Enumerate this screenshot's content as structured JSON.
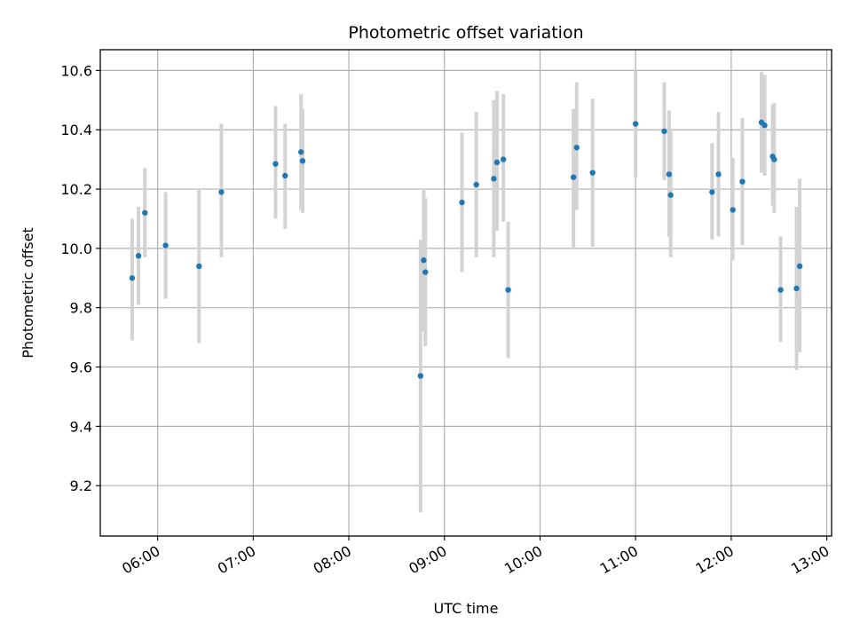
{
  "chart_data": {
    "type": "scatter",
    "title": "Photometric offset variation",
    "xlabel": "UTC time",
    "ylabel": "Photometric offset",
    "x_ticks": [
      "06:00",
      "07:00",
      "08:00",
      "09:00",
      "10:00",
      "11:00",
      "12:00",
      "13:00"
    ],
    "y_ticks": [
      "9.2",
      "9.4",
      "9.6",
      "9.8",
      "10.0",
      "10.2",
      "10.4",
      "10.6"
    ],
    "xlim": [
      "05:24",
      "13:03"
    ],
    "ylim": [
      9.03,
      10.67
    ],
    "grid": true,
    "colors": {
      "point": "#1f77b4",
      "errorbar": "#d3d3d3",
      "grid": "#b0b0b0"
    },
    "points": [
      {
        "x": "05:44",
        "y": 9.9,
        "ylo": 9.69,
        "yhi": 10.1
      },
      {
        "x": "05:48",
        "y": 9.975,
        "ylo": 9.81,
        "yhi": 10.14
      },
      {
        "x": "05:52",
        "y": 10.12,
        "ylo": 9.97,
        "yhi": 10.27
      },
      {
        "x": "06:05",
        "y": 10.01,
        "ylo": 9.83,
        "yhi": 10.19
      },
      {
        "x": "06:26",
        "y": 9.94,
        "ylo": 9.68,
        "yhi": 10.2
      },
      {
        "x": "06:40",
        "y": 10.19,
        "ylo": 9.97,
        "yhi": 10.42
      },
      {
        "x": "07:14",
        "y": 10.285,
        "ylo": 10.1,
        "yhi": 10.48
      },
      {
        "x": "07:20",
        "y": 10.245,
        "ylo": 10.065,
        "yhi": 10.42
      },
      {
        "x": "07:30",
        "y": 10.325,
        "ylo": 10.13,
        "yhi": 10.52
      },
      {
        "x": "07:31",
        "y": 10.295,
        "ylo": 10.12,
        "yhi": 10.47
      },
      {
        "x": "08:45",
        "y": 9.57,
        "ylo": 9.11,
        "yhi": 10.03
      },
      {
        "x": "08:47",
        "y": 9.96,
        "ylo": 9.72,
        "yhi": 10.2
      },
      {
        "x": "08:48",
        "y": 9.92,
        "ylo": 9.67,
        "yhi": 10.17
      },
      {
        "x": "09:11",
        "y": 10.155,
        "ylo": 9.92,
        "yhi": 10.39
      },
      {
        "x": "09:20",
        "y": 10.215,
        "ylo": 9.97,
        "yhi": 10.46
      },
      {
        "x": "09:31",
        "y": 10.235,
        "ylo": 9.97,
        "yhi": 10.5
      },
      {
        "x": "09:33",
        "y": 10.29,
        "ylo": 10.06,
        "yhi": 10.53
      },
      {
        "x": "09:37",
        "y": 10.3,
        "ylo": 10.09,
        "yhi": 10.52
      },
      {
        "x": "09:40",
        "y": 9.86,
        "ylo": 9.63,
        "yhi": 10.09
      },
      {
        "x": "10:21",
        "y": 10.24,
        "ylo": 10.0,
        "yhi": 10.47
      },
      {
        "x": "10:23",
        "y": 10.34,
        "ylo": 10.13,
        "yhi": 10.56
      },
      {
        "x": "10:33",
        "y": 10.255,
        "ylo": 10.005,
        "yhi": 10.505
      },
      {
        "x": "11:00",
        "y": 10.42,
        "ylo": 10.24,
        "yhi": 10.6
      },
      {
        "x": "11:18",
        "y": 10.395,
        "ylo": 10.23,
        "yhi": 10.56
      },
      {
        "x": "11:21",
        "y": 10.25,
        "ylo": 10.04,
        "yhi": 10.465
      },
      {
        "x": "11:22",
        "y": 10.18,
        "ylo": 9.97,
        "yhi": 10.4
      },
      {
        "x": "11:48",
        "y": 10.19,
        "ylo": 10.03,
        "yhi": 10.355
      },
      {
        "x": "11:52",
        "y": 10.25,
        "ylo": 10.04,
        "yhi": 10.46
      },
      {
        "x": "12:01",
        "y": 10.13,
        "ylo": 9.96,
        "yhi": 10.305
      },
      {
        "x": "12:07",
        "y": 10.225,
        "ylo": 10.01,
        "yhi": 10.44
      },
      {
        "x": "12:19",
        "y": 10.425,
        "ylo": 10.255,
        "yhi": 10.595
      },
      {
        "x": "12:21",
        "y": 10.415,
        "ylo": 10.245,
        "yhi": 10.585
      },
      {
        "x": "12:26",
        "y": 10.31,
        "ylo": 10.145,
        "yhi": 10.485
      },
      {
        "x": "12:27",
        "y": 10.3,
        "ylo": 10.12,
        "yhi": 10.49
      },
      {
        "x": "12:31",
        "y": 9.86,
        "ylo": 9.685,
        "yhi": 10.04
      },
      {
        "x": "12:41",
        "y": 9.865,
        "ylo": 9.59,
        "yhi": 10.14
      },
      {
        "x": "12:43",
        "y": 9.94,
        "ylo": 9.65,
        "yhi": 10.235
      }
    ]
  }
}
